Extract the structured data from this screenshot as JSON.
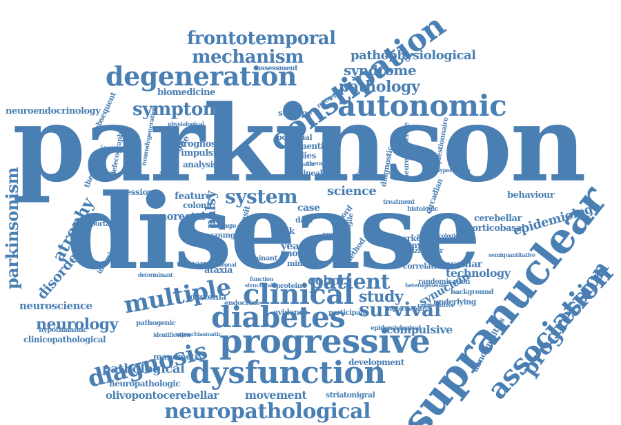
{
  "color": "#4a7fb3",
  "words": [
    "parkinson",
    "disease",
    "supranuclear",
    "progressive",
    "diabetes",
    "dysfunction",
    "clinical",
    "autonomic",
    "constipation",
    "degeneration",
    "neuropathological",
    "association",
    "progression",
    "multiple",
    "diagnosis",
    "patient",
    "system",
    "survival",
    "symptom",
    "mechanism",
    "frontotemporal",
    "pathology",
    "syndrome",
    "pathophysiological",
    "neurology",
    "parkinsonism",
    "atrophy",
    "disorder",
    "epidemiology",
    "study",
    "cohort",
    "pathological",
    "movement",
    "science",
    "neuroscience",
    "anorectal",
    "olivopontocerebellar",
    "synuclein",
    "compulsive",
    "technology",
    "vascular",
    "behaviour",
    "cerebellar",
    "corticobasal",
    "year",
    "feature",
    "palsy",
    "ataxia",
    "dystonia",
    "biomedicine",
    "neuroendocrinology",
    "abnormalities",
    "hypothalamic",
    "clinicopathological",
    "manometry",
    "neuropathologic",
    "striatonigral",
    "development",
    "evidence",
    "participant",
    "prognosis",
    "impulsive",
    "milestone",
    "analysis",
    "regression",
    "colonic",
    "important",
    "urinary",
    "endocrine",
    "pathogenic",
    "subsequent",
    "assessment",
    "subtype",
    "defecography",
    "dementia",
    "studies",
    "potential",
    "case",
    "record",
    "amyloid",
    "marker",
    "alzheimer",
    "correlation",
    "background",
    "underlying",
    "randomisation",
    "circadian",
    "diagnostic",
    "duration",
    "risk",
    "data",
    "mimic",
    "motor",
    "result",
    "method",
    "dominant",
    "protein",
    "young",
    "tremor",
    "linkage",
    "retrospective",
    "neurodegeneration",
    "neuroendocrine",
    "questionnaire",
    "therapeutic",
    "neuronal",
    "transit",
    "consecutive",
    "infusion",
    "semiquantitative",
    "therapy",
    "pineal",
    "heterogeneous",
    "hypotension",
    "control",
    "fragile",
    "suprachiasmatic",
    "identification",
    "determinant",
    "function",
    "histologic",
    "treatment",
    "physiological",
    "structural",
    "inclusion",
    "pharmacological",
    "epidemiological",
    "supplementary"
  ]
}
